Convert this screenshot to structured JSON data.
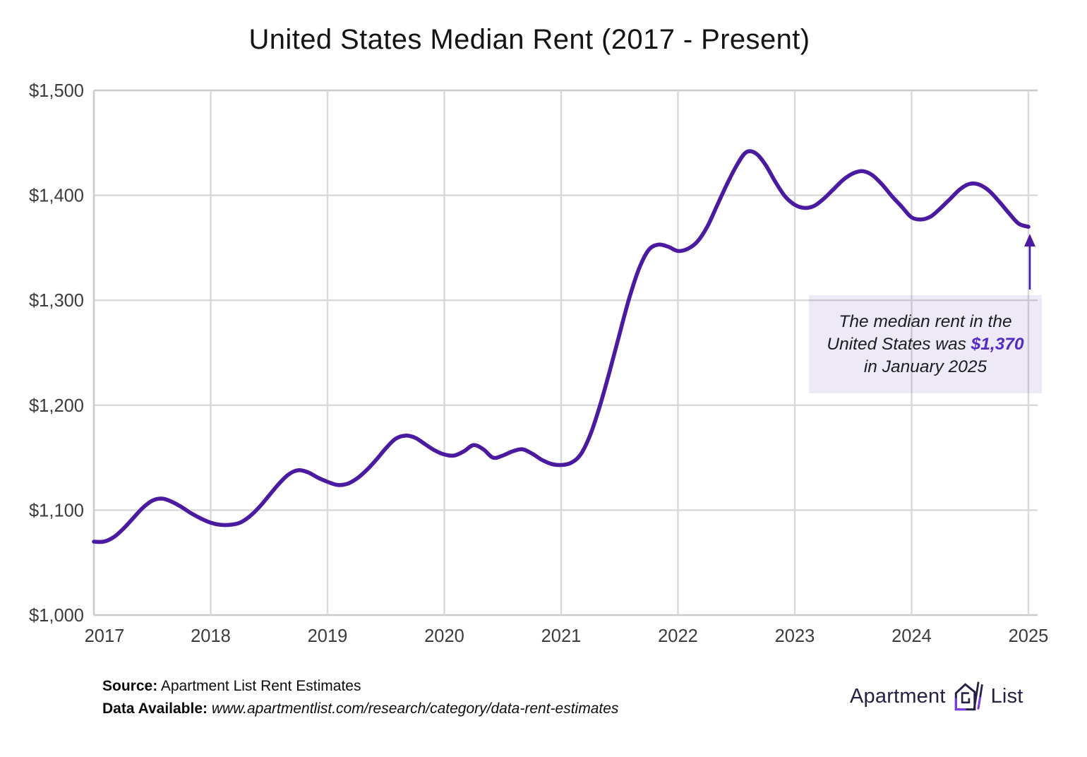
{
  "chart_data": {
    "type": "line",
    "title": "United States Median Rent (2017 - Present)",
    "series": [
      {
        "name": "US median rent",
        "start": "2017-01",
        "frequency": "monthly",
        "values": [
          1070,
          1070,
          1074,
          1082,
          1092,
          1102,
          1109,
          1111,
          1108,
          1103,
          1097,
          1092,
          1088,
          1086,
          1086,
          1088,
          1094,
          1103,
          1114,
          1125,
          1134,
          1138,
          1136,
          1131,
          1127,
          1124,
          1125,
          1130,
          1138,
          1148,
          1159,
          1168,
          1171,
          1169,
          1163,
          1157,
          1153,
          1152,
          1156,
          1162,
          1158,
          1150,
          1152,
          1156,
          1158,
          1154,
          1148,
          1144,
          1143,
          1145,
          1153,
          1172,
          1200,
          1233,
          1268,
          1302,
          1330,
          1348,
          1353,
          1351,
          1347,
          1349,
          1356,
          1370,
          1390,
          1410,
          1428,
          1441,
          1440,
          1429,
          1413,
          1399,
          1391,
          1388,
          1390,
          1397,
          1406,
          1415,
          1421,
          1423,
          1419,
          1410,
          1399,
          1389,
          1379,
          1377,
          1380,
          1388,
          1397,
          1406,
          1411,
          1410,
          1404,
          1394,
          1383,
          1373,
          1370
        ]
      }
    ],
    "xlabel": "",
    "ylabel": "",
    "xlim": [
      2017,
      2025.08
    ],
    "ylim": [
      1000,
      1500
    ],
    "grid": true,
    "x_ticks": [
      "2017",
      "2018",
      "2019",
      "2020",
      "2021",
      "2022",
      "2023",
      "2024",
      "2025"
    ],
    "x_tick_values": [
      2017,
      2018,
      2019,
      2020,
      2021,
      2022,
      2023,
      2024,
      2025
    ],
    "y_ticks": [
      "$1,000",
      "$1,100",
      "$1,200",
      "$1,300",
      "$1,400",
      "$1,500"
    ],
    "y_tick_values": [
      1000,
      1100,
      1200,
      1300,
      1400,
      1500
    ],
    "last_point": {
      "x": 2025,
      "y": 1370
    }
  },
  "annotation": {
    "line1": "The median rent in the",
    "line2_prefix": "United States was ",
    "value": "$1,370",
    "line3": "in January 2025"
  },
  "footer": {
    "source_label": "Source:",
    "source_text": " Apartment List Rent Estimates",
    "data_label": "Data Available:",
    "data_url": " www.apartmentlist.com/research/category/data-rent-estimates"
  },
  "logo": {
    "word1": "Apartment",
    "word2": "List"
  },
  "colors": {
    "line": "#4A1AA0",
    "value_text": "#5529C4",
    "annotation_bg": "#EDE7F7",
    "grid": "#D8D8D8",
    "spine": "#C9C9C9",
    "axis_text": "#3C3C3C",
    "title_text": "#141416",
    "logo_text": "#262044",
    "logo_accent": "#7B3BE2"
  }
}
